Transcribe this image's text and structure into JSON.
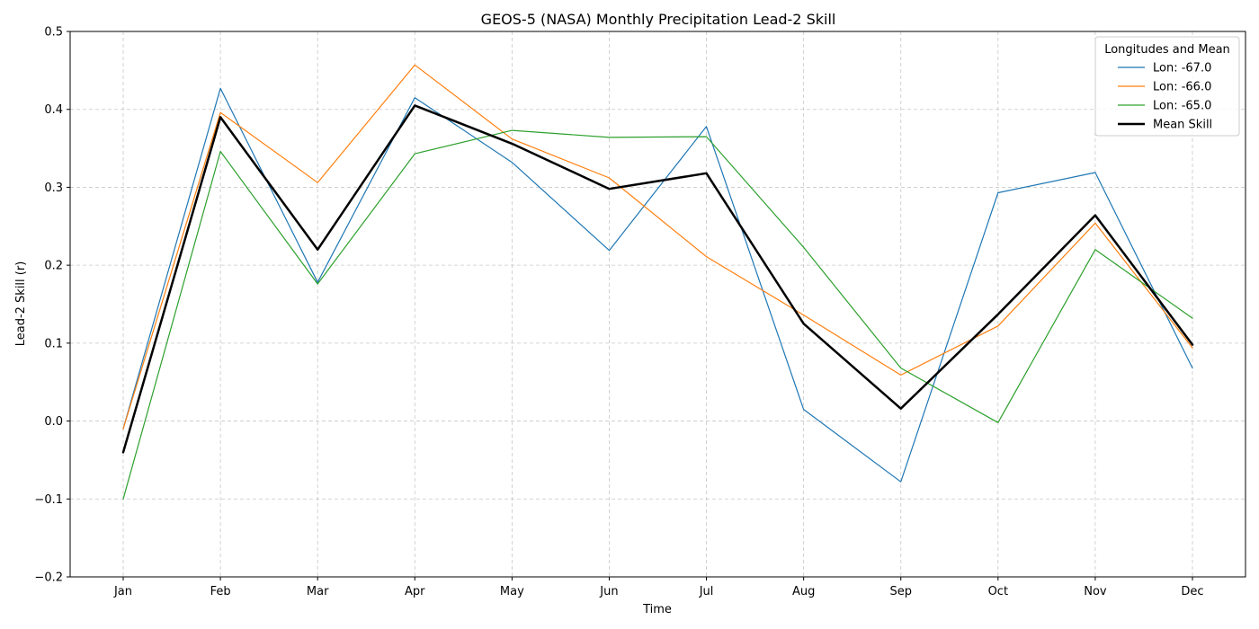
{
  "chart_data": {
    "type": "line",
    "title": "GEOS-5 (NASA) Monthly Precipitation Lead-2 Skill",
    "xlabel": "Time",
    "ylabel": "Lead-2 Skill (r)",
    "categories": [
      "Jan",
      "Feb",
      "Mar",
      "Apr",
      "May",
      "Jun",
      "Jul",
      "Aug",
      "Sep",
      "Oct",
      "Nov",
      "Dec"
    ],
    "ylim": [
      -0.2,
      0.5
    ],
    "yticks": [
      "−0.2",
      "−0.1",
      "0.0",
      "0.1",
      "0.2",
      "0.3",
      "0.4",
      "0.5"
    ],
    "ytick_values": [
      -0.2,
      -0.1,
      0.0,
      0.1,
      0.2,
      0.3,
      0.4,
      0.5
    ],
    "grid": true,
    "legend_title": "Longitudes and Mean",
    "legend_position": "top-right",
    "series": [
      {
        "name": "Lon: -67.0",
        "color": "#1f77b4",
        "values": [
          -0.01,
          0.427,
          0.178,
          0.415,
          0.332,
          0.219,
          0.378,
          0.015,
          -0.078,
          0.293,
          0.319,
          0.068
        ]
      },
      {
        "name": "Lon: -66.0",
        "color": "#ff7f0e",
        "values": [
          -0.01,
          0.396,
          0.306,
          0.457,
          0.362,
          0.312,
          0.211,
          0.136,
          0.059,
          0.122,
          0.254,
          0.094
        ]
      },
      {
        "name": "Lon: -65.0",
        "color": "#2ca02c",
        "values": [
          -0.1,
          0.346,
          0.176,
          0.343,
          0.373,
          0.364,
          0.365,
          0.223,
          0.068,
          -0.002,
          0.22,
          0.132
        ]
      },
      {
        "name": "Mean Skill",
        "color": "#000000",
        "values": [
          -0.04,
          0.39,
          0.22,
          0.405,
          0.356,
          0.298,
          0.318,
          0.125,
          0.016,
          0.137,
          0.264,
          0.098
        ]
      }
    ]
  }
}
